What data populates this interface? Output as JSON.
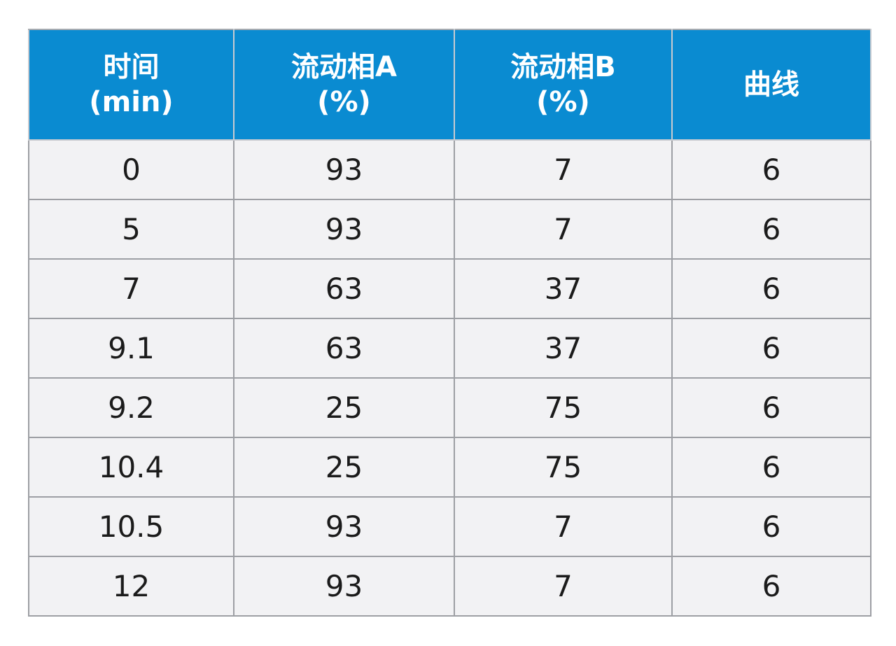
{
  "table": {
    "headers": [
      [
        "时间",
        "(min)"
      ],
      [
        "流动相A",
        "(%)"
      ],
      [
        "流动相B",
        "(%)"
      ],
      [
        "曲线"
      ]
    ],
    "rows": [
      [
        "0",
        "93",
        "7",
        "6"
      ],
      [
        "5",
        "93",
        "7",
        "6"
      ],
      [
        "7",
        "63",
        "37",
        "6"
      ],
      [
        "9.1",
        "63",
        "37",
        "6"
      ],
      [
        "9.2",
        "25",
        "75",
        "6"
      ],
      [
        "10.4",
        "25",
        "75",
        "6"
      ],
      [
        "10.5",
        "93",
        "7",
        "6"
      ],
      [
        "12",
        "93",
        "7",
        "6"
      ]
    ]
  },
  "colors": {
    "header_bg": "#0a8bd1",
    "header_text": "#ffffff",
    "cell_bg": "#f2f2f4",
    "grid": "#9d9fa4"
  }
}
